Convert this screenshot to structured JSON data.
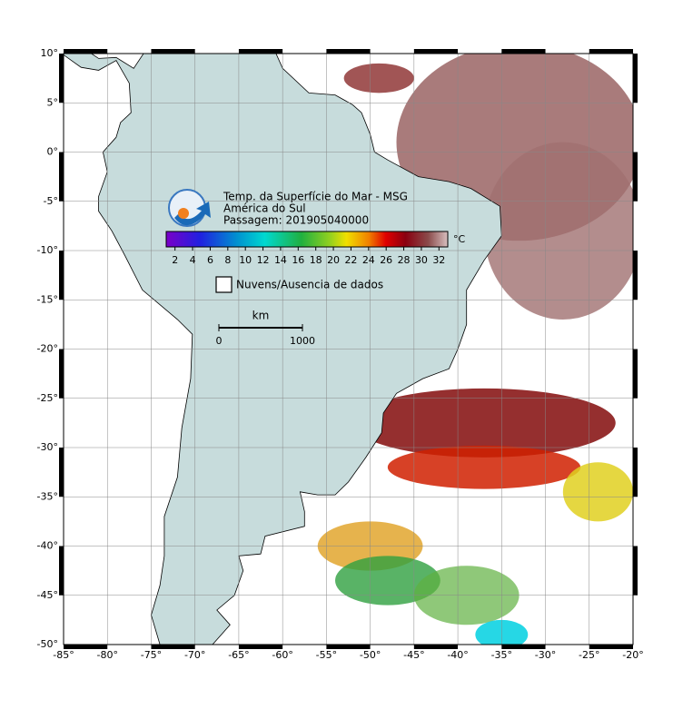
{
  "map": {
    "title": "Temp. da Superfície do Mar - MSG",
    "region": "América do Sul",
    "pass": "Passagem: 201905040000",
    "xlim": [
      -85,
      -20
    ],
    "ylim": [
      -50,
      10
    ],
    "xticks": [
      {
        "value": -85,
        "label": "-85°"
      },
      {
        "value": -80,
        "label": "-80°"
      },
      {
        "value": -75,
        "label": "-75°"
      },
      {
        "value": -70,
        "label": "-70°"
      },
      {
        "value": -65,
        "label": "-65°"
      },
      {
        "value": -60,
        "label": "-60°"
      },
      {
        "value": -55,
        "label": "-55°"
      },
      {
        "value": -50,
        "label": "-50°"
      },
      {
        "value": -45,
        "label": "-45°"
      },
      {
        "value": -40,
        "label": "-40°"
      },
      {
        "value": -35,
        "label": "-35°"
      },
      {
        "value": -30,
        "label": "-30°"
      },
      {
        "value": -25,
        "label": "-25°"
      },
      {
        "value": -20,
        "label": "-20°"
      }
    ],
    "yticks": [
      {
        "value": 10,
        "label": "10°"
      },
      {
        "value": 5,
        "label": "5°"
      },
      {
        "value": 0,
        "label": "0°"
      },
      {
        "value": -5,
        "label": "-5°"
      },
      {
        "value": -10,
        "label": "-10°"
      },
      {
        "value": -15,
        "label": "-15°"
      },
      {
        "value": -20,
        "label": "-20°"
      },
      {
        "value": -25,
        "label": "-25°"
      },
      {
        "value": -30,
        "label": "-30°"
      },
      {
        "value": -35,
        "label": "-35°"
      },
      {
        "value": -40,
        "label": "-40°"
      },
      {
        "value": -45,
        "label": "-45°"
      },
      {
        "value": -50,
        "label": "-50°"
      }
    ],
    "grid": true,
    "colorbar": {
      "range": [
        1,
        33
      ],
      "ticks": [
        2,
        4,
        6,
        8,
        10,
        12,
        14,
        16,
        18,
        20,
        22,
        24,
        26,
        28,
        30,
        32
      ],
      "unit": "°C"
    },
    "legend": "Nuvens/Ausencia de dados",
    "scale": {
      "unit": "km",
      "labels": [
        "0",
        "1000"
      ]
    }
  }
}
